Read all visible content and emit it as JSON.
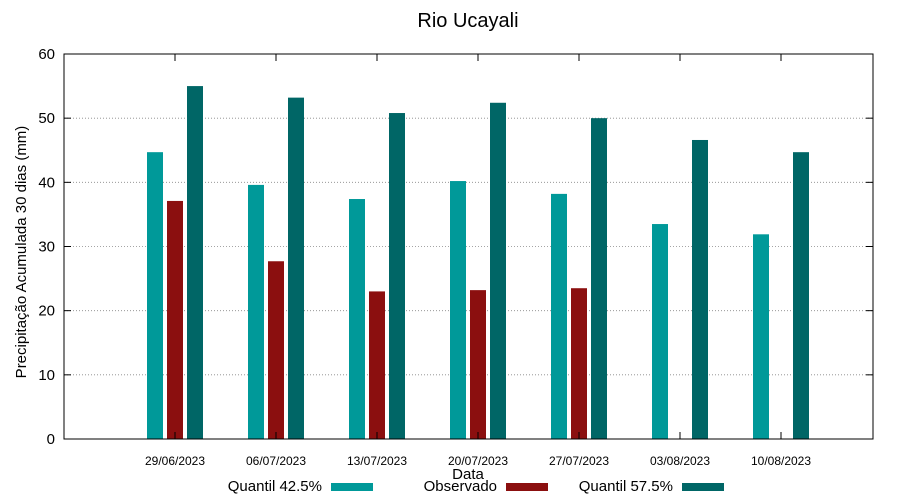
{
  "chart_data": {
    "type": "bar",
    "title": "Rio Ucayali",
    "xlabel": "Data",
    "ylabel": "Precipitação Acumulada 30 dias (mm)",
    "ylim": [
      0,
      60
    ],
    "yticks": [
      0,
      10,
      20,
      30,
      40,
      50,
      60
    ],
    "grid": true,
    "legend_position": "bottom",
    "categories": [
      "29/06/2023",
      "06/07/2023",
      "13/07/2023",
      "20/07/2023",
      "27/07/2023",
      "03/08/2023",
      "10/08/2023"
    ],
    "series": [
      {
        "name": "Quantil 42.5%",
        "color": "#009999",
        "values": [
          44.7,
          39.6,
          37.4,
          40.2,
          38.2,
          33.5,
          31.9
        ]
      },
      {
        "name": "Observado",
        "color": "#8b0f0f",
        "values": [
          37.1,
          27.7,
          23.0,
          23.2,
          23.5,
          null,
          null
        ]
      },
      {
        "name": "Quantil 57.5%",
        "color": "#006666",
        "values": [
          55.0,
          53.2,
          50.8,
          52.4,
          50.0,
          46.6,
          44.7
        ]
      }
    ]
  }
}
